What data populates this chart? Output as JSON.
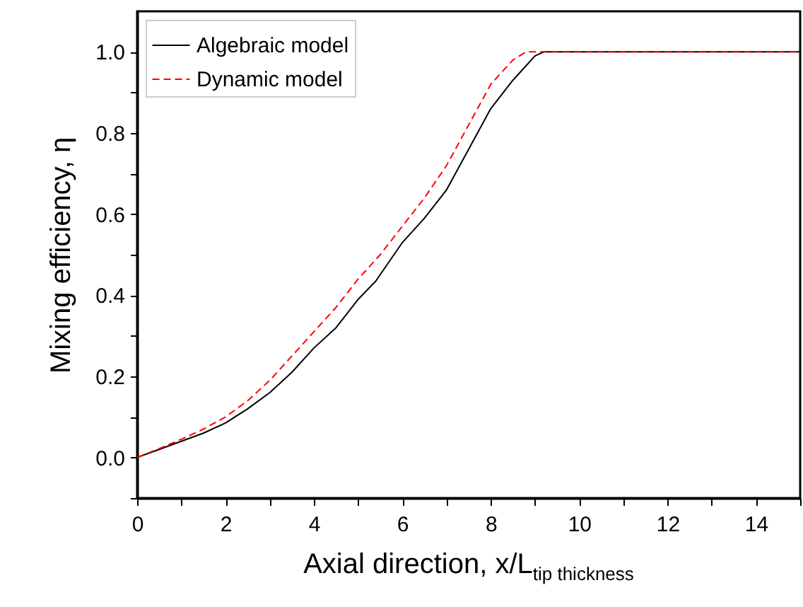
{
  "chart_data": {
    "type": "line",
    "xlabel": "Axial direction, x/L$_{tip thickness}$",
    "ylabel": "Mixing efficiency, η",
    "xlim": [
      0,
      15
    ],
    "ylim": [
      -0.1,
      1.1
    ],
    "xticks": [
      0,
      {
        "value": 1,
        "label": null
      },
      2,
      {
        "value": 3,
        "label": null
      },
      4,
      {
        "value": 5,
        "label": null
      },
      6,
      {
        "value": 7,
        "label": null
      },
      8,
      {
        "value": 9,
        "label": null
      },
      10,
      {
        "value": 11,
        "label": null
      },
      12,
      {
        "value": 13,
        "label": null
      },
      14,
      {
        "value": 15,
        "label": null
      }
    ],
    "yticks": [
      {
        "value": -0.1,
        "label": null
      },
      {
        "value": 0,
        "label": "0.0"
      },
      {
        "value": 0.1,
        "label": null
      },
      0.2,
      {
        "value": 0.3,
        "label": null
      },
      0.4,
      {
        "value": 0.5,
        "label": null
      },
      0.6,
      {
        "value": 0.7,
        "label": null
      },
      0.8,
      {
        "value": 0.9,
        "label": null
      },
      {
        "value": 1,
        "label": "1.0"
      }
    ],
    "grid": false,
    "legend": "top left",
    "series": [
      {
        "name": "Algebraic model",
        "color": "#000000",
        "line_style": "solid",
        "x": [
          0,
          0.5,
          1,
          1.5,
          2,
          2.5,
          3,
          3.5,
          4,
          4.5,
          5,
          5.4,
          6,
          6.5,
          7,
          7.5,
          8,
          8.5,
          9,
          9.2,
          10,
          12,
          15
        ],
        "values": [
          0,
          0.02,
          0.04,
          0.06,
          0.085,
          0.12,
          0.16,
          0.21,
          0.27,
          0.32,
          0.39,
          0.435,
          0.53,
          0.59,
          0.66,
          0.76,
          0.86,
          0.93,
          0.99,
          1.0,
          1.0,
          1.0,
          1.0
        ]
      },
      {
        "name": "Dynamic model",
        "color": "#ff0000",
        "line_style": "dashed",
        "x": [
          0,
          0.5,
          1,
          1.5,
          2,
          2.5,
          3,
          3.5,
          4,
          4.5,
          5,
          5.5,
          6,
          6.5,
          7,
          7.5,
          8,
          8.5,
          8.8,
          9,
          10,
          12,
          15
        ],
        "values": [
          0,
          0.022,
          0.045,
          0.07,
          0.1,
          0.14,
          0.19,
          0.25,
          0.31,
          0.37,
          0.44,
          0.5,
          0.57,
          0.64,
          0.72,
          0.82,
          0.92,
          0.98,
          1.0,
          1.0,
          1.0,
          1.0,
          1.0
        ]
      }
    ]
  }
}
